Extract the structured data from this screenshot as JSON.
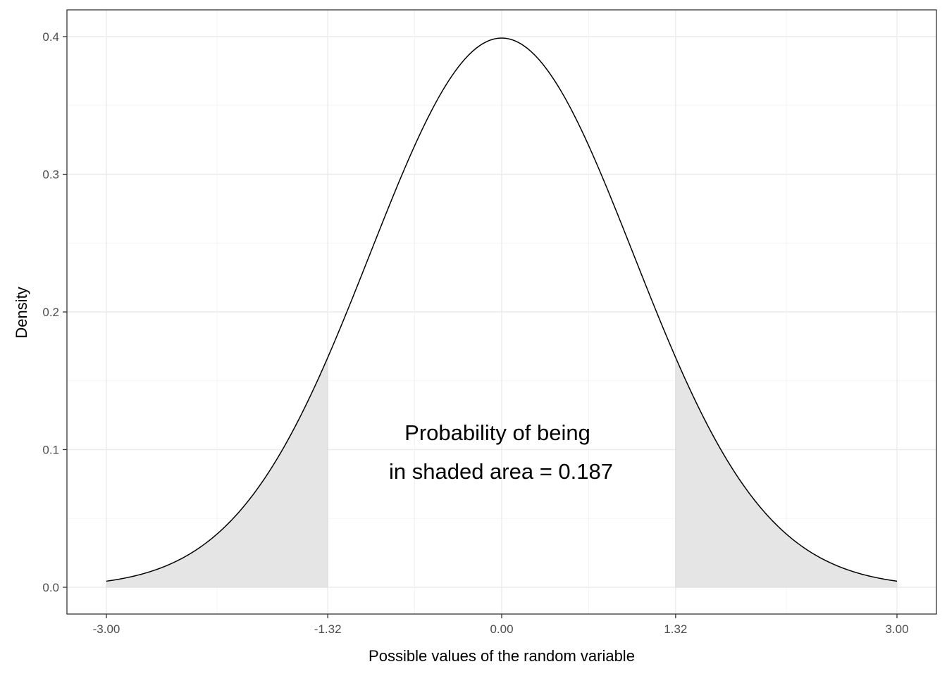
{
  "chart_data": {
    "type": "area",
    "title": "",
    "xlabel": "Possible values of the random variable",
    "ylabel": "Density",
    "distribution": "standard normal",
    "xlim": [
      -3.0,
      3.0
    ],
    "ylim": [
      0.0,
      0.4
    ],
    "x_ticks": [
      "-3.00",
      "-1.32",
      "0.00",
      "1.32",
      "3.00"
    ],
    "x_tick_values": [
      -3.0,
      -1.32,
      0.0,
      1.32,
      3.0
    ],
    "y_ticks": [
      "0.0",
      "0.1",
      "0.2",
      "0.3",
      "0.4"
    ],
    "y_tick_values": [
      0.0,
      0.1,
      0.2,
      0.3,
      0.4
    ],
    "grid": true,
    "legend": "none",
    "shaded_regions": [
      {
        "from": -3.0,
        "to": -1.32
      },
      {
        "from": 1.32,
        "to": 3.0
      }
    ],
    "series": [
      {
        "name": "density",
        "x": [
          -3.0,
          -2.5,
          -2.0,
          -1.5,
          -1.32,
          -1.0,
          -0.5,
          0.0,
          0.5,
          1.0,
          1.32,
          1.5,
          2.0,
          2.5,
          3.0
        ],
        "values": [
          0.004,
          0.018,
          0.054,
          0.13,
          0.167,
          0.242,
          0.352,
          0.399,
          0.352,
          0.242,
          0.167,
          0.13,
          0.054,
          0.018,
          0.004
        ]
      }
    ],
    "annotations": [
      {
        "text": "Probability of being",
        "x": 0.0,
        "y": 0.112
      },
      {
        "text": "in shaded area = 0.187",
        "x": 0.0,
        "y": 0.084
      }
    ],
    "colors": {
      "curve": "#000000",
      "shade": "#e5e5e5",
      "grid": "#ebebeb",
      "panel_border": "#333333"
    }
  }
}
